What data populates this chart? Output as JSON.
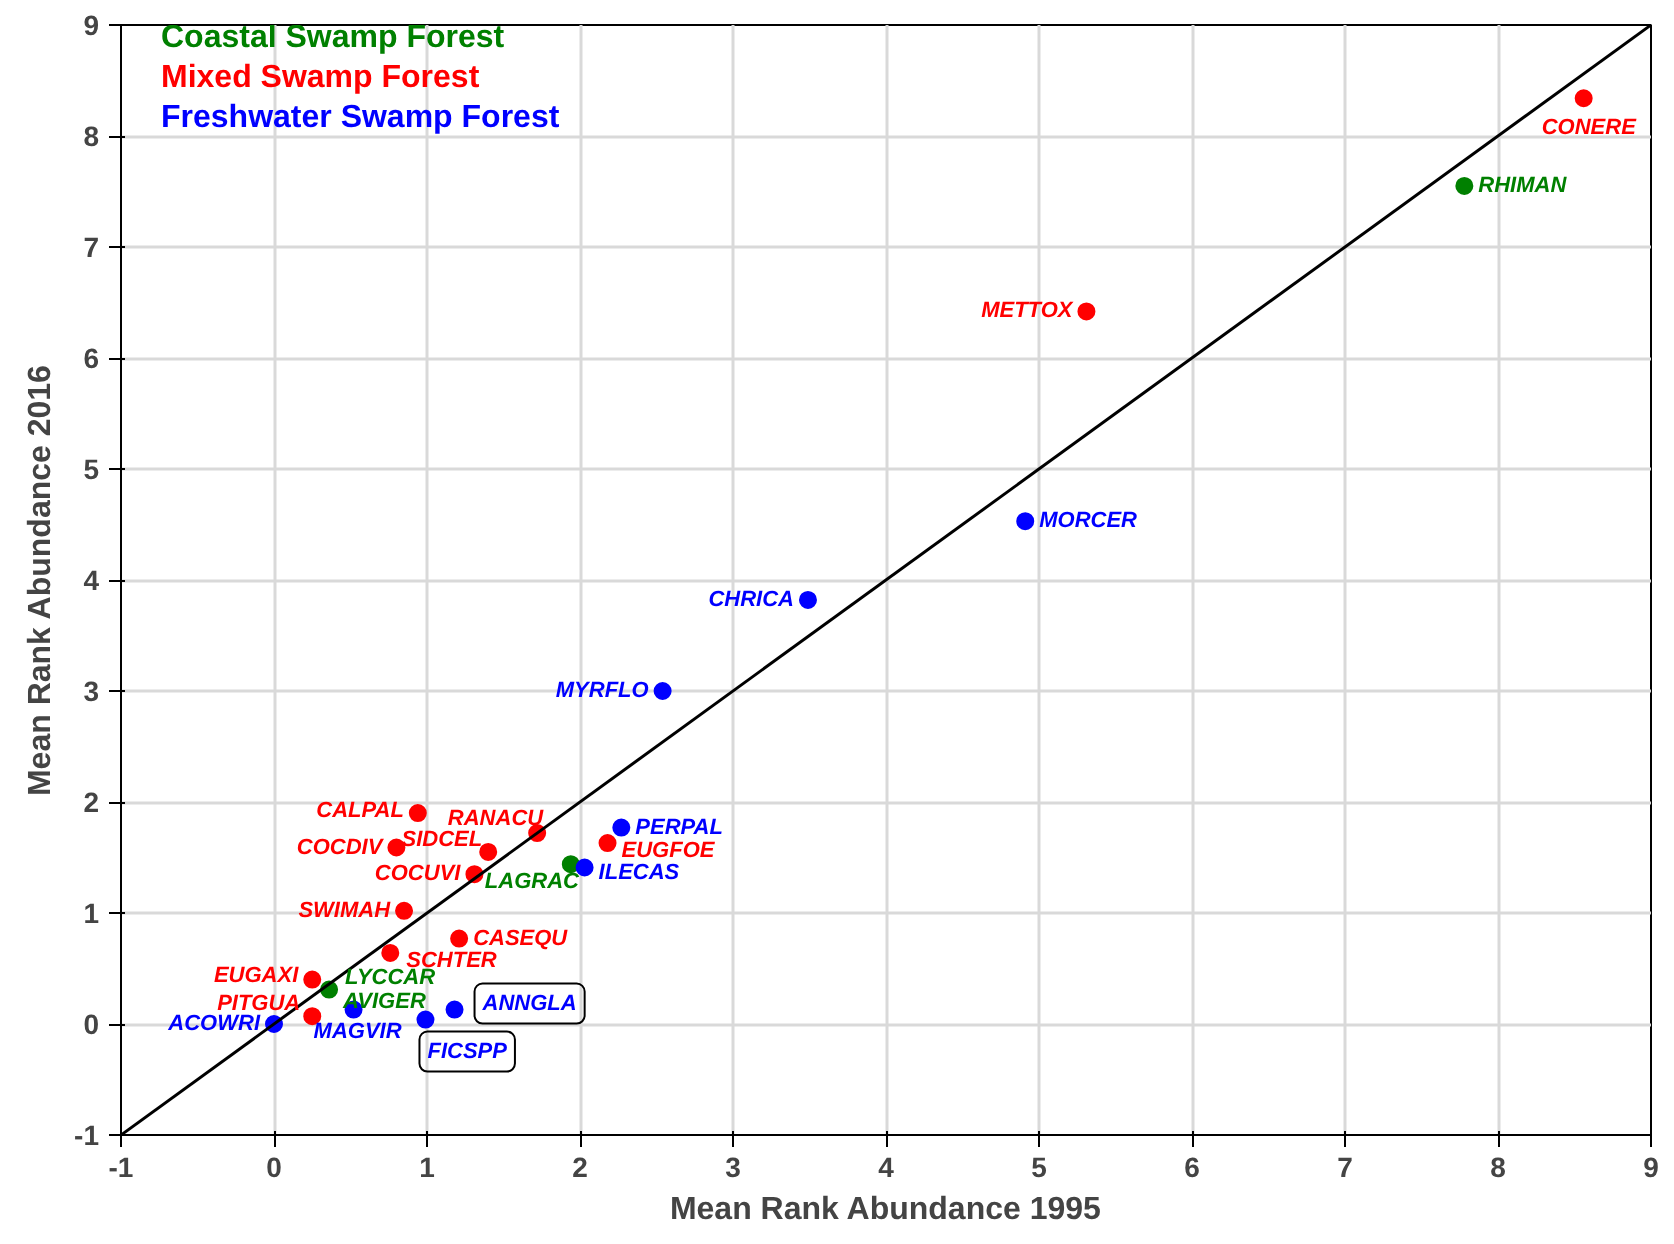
{
  "chart_data": {
    "type": "scatter",
    "xlabel": "Mean Rank Abundance 1995",
    "ylabel": "Mean Rank Abundance 2016",
    "xlim": [
      -1,
      9
    ],
    "ylim": [
      -1,
      9
    ],
    "xticks": [
      -1,
      0,
      1,
      2,
      3,
      4,
      5,
      6,
      7,
      8,
      9
    ],
    "yticks": [
      -1,
      0,
      1,
      2,
      3,
      4,
      5,
      6,
      7,
      8,
      9
    ],
    "grid": true,
    "legend": "top left",
    "series": [
      {
        "name": "Coastal Swamp Forest",
        "color": "#008000",
        "marker": "circle",
        "x": [
          7.78,
          1.94,
          0.36
        ],
        "values": [
          7.55,
          1.44,
          0.31
        ]
      },
      {
        "name": "Mixed Swamp Forest",
        "color": "#ff0000",
        "marker": "circle",
        "x": [
          8.56,
          5.31,
          0.94,
          1.72,
          0.8,
          1.4,
          2.18,
          1.31,
          0.85,
          1.21,
          0.76,
          0.25,
          0.25
        ],
        "values": [
          8.34,
          6.42,
          1.9,
          1.72,
          1.59,
          1.55,
          1.63,
          1.35,
          1.02,
          0.77,
          0.64,
          0.4,
          0.07
        ]
      },
      {
        "name": "Freshwater Swamp Forest",
        "color": "#0000ff",
        "marker": "circle",
        "x": [
          4.91,
          3.49,
          2.54,
          2.27,
          2.03,
          0.52,
          0.99,
          1.18,
          0
        ],
        "values": [
          4.53,
          3.82,
          3.0,
          1.77,
          1.41,
          0.13,
          0.04,
          0.13,
          0
        ]
      },
      {
        "type": "line",
        "color": "#000000",
        "x": [
          -1,
          9
        ],
        "values": [
          -1,
          9
        ]
      }
    ],
    "annotations": [
      {
        "text": "RHIMAN",
        "x": 7.78,
        "y": 7.55
      },
      {
        "text": "LAGRAC",
        "x": 1.94,
        "y": 1.44
      },
      {
        "text": "LYCCAR",
        "x": 0.36,
        "y": 0.31
      },
      {
        "text": "AVIGER",
        "x": 0.36,
        "y": 0.31
      },
      {
        "text": "CONERE",
        "x": 8.56,
        "y": 8.34
      },
      {
        "text": "METTOX",
        "x": 5.31,
        "y": 6.42
      },
      {
        "text": "CALPAL",
        "x": 0.94,
        "y": 1.9
      },
      {
        "text": "RANACU",
        "x": 1.72,
        "y": 1.72
      },
      {
        "text": "COCDIV",
        "x": 0.8,
        "y": 1.59
      },
      {
        "text": "SIDCEL",
        "x": 1.4,
        "y": 1.55
      },
      {
        "text": "EUGFOE",
        "x": 2.18,
        "y": 1.63
      },
      {
        "text": "COCUVI",
        "x": 1.31,
        "y": 1.35
      },
      {
        "text": "SWIMAH",
        "x": 0.85,
        "y": 1.02
      },
      {
        "text": "CASEQU",
        "x": 1.21,
        "y": 0.77
      },
      {
        "text": "SCHTER",
        "x": 0.76,
        "y": 0.64
      },
      {
        "text": "EUGAXI",
        "x": 0.25,
        "y": 0.4
      },
      {
        "text": "PITGUA",
        "x": 0.25,
        "y": 0.07
      },
      {
        "text": "MORCER",
        "x": 4.91,
        "y": 4.53
      },
      {
        "text": "CHRICA",
        "x": 3.49,
        "y": 3.82
      },
      {
        "text": "MYRFLO",
        "x": 2.54,
        "y": 3.0
      },
      {
        "text": "PERPAL",
        "x": 2.27,
        "y": 1.77
      },
      {
        "text": "ILECAS",
        "x": 2.03,
        "y": 1.41
      },
      {
        "text": "MAGVIR",
        "x": 0.52,
        "y": 0.13
      },
      {
        "text": "FICSPP",
        "x": 0.99,
        "y": 0.04
      },
      {
        "text": "ANNGLA",
        "x": 1.18,
        "y": 0.13
      },
      {
        "text": "ACOWRI",
        "x": 0,
        "y": 0
      }
    ]
  }
}
